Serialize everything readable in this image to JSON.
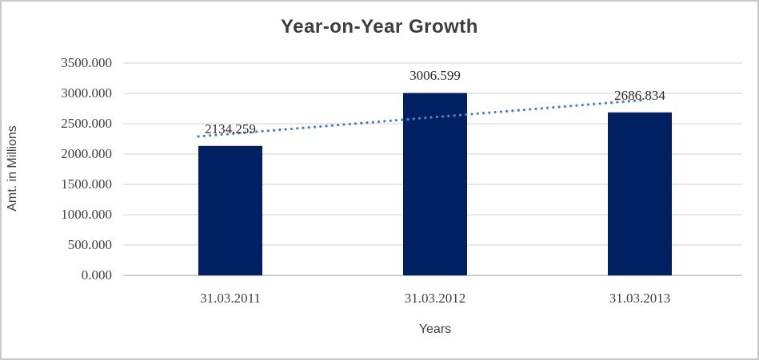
{
  "chart_data": {
    "type": "bar",
    "title": "Year-on-Year Growth",
    "xlabel": "Years",
    "ylabel": "Amt. in Millions",
    "categories": [
      "31.03.2011",
      "31.03.2012",
      "31.03.2013"
    ],
    "values": [
      2134.259,
      3006.599,
      2686.834
    ],
    "data_labels": [
      "2134.259",
      "3006.599",
      "2686.834"
    ],
    "ylim": [
      0,
      3500
    ],
    "ytick_step": 500,
    "ytick_labels": [
      "0.000",
      "500.000",
      "1000.000",
      "1500.000",
      "2000.000",
      "2500.000",
      "3000.000",
      "3500.000"
    ],
    "grid": true,
    "legend_position": "none",
    "bar_color": "#012061",
    "trendline": {
      "type": "linear",
      "style": "dotted",
      "color": "#4f81bd"
    },
    "gridline_color": "#d9d9d9",
    "axis_line_color": "#bdbdbd",
    "title_color": "#3d3d3d",
    "label_color": "#3f3f3f"
  }
}
